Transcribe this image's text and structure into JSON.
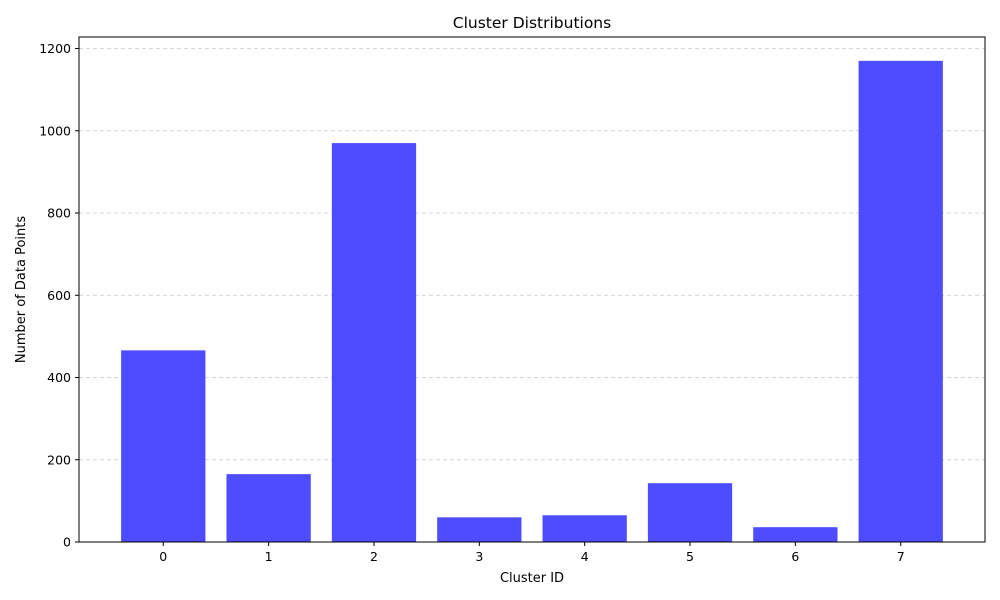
{
  "chart_data": {
    "type": "bar",
    "title": "Cluster Distributions",
    "xlabel": "Cluster ID",
    "ylabel": "Number of Data Points",
    "categories": [
      "0",
      "1",
      "2",
      "3",
      "4",
      "5",
      "6",
      "7"
    ],
    "values": [
      466,
      165,
      970,
      60,
      65,
      143,
      36,
      1170
    ],
    "ylim": [
      0,
      1228
    ],
    "yticks": [
      0,
      200,
      400,
      600,
      800,
      1000,
      1200
    ],
    "grid": "y-dashed",
    "bar_color": "#4d4dff"
  }
}
